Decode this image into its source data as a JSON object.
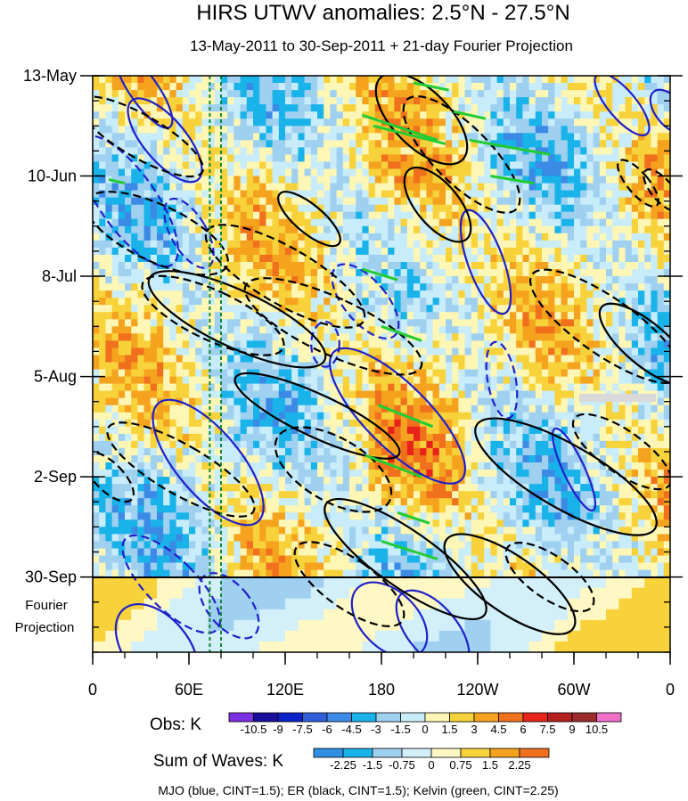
{
  "chart_data": {
    "type": "heatmap",
    "title": "HIRS UTWV anomalies: 2.5°N - 27.5°N",
    "subtitle": "13-May-2011 to 30-Sep-2011 + 21-day Fourier Projection",
    "y_axis": {
      "labels": [
        "13-May",
        "10-Jun",
        "8-Jul",
        "5-Aug",
        "2-Sep",
        "30-Sep"
      ],
      "day_offsets": [
        0,
        28,
        56,
        84,
        112,
        140
      ],
      "range_days": [
        0,
        161
      ],
      "projection_label": [
        "Fourier",
        "Projection"
      ],
      "projection_start_day": 140
    },
    "x_axis": {
      "labels": [
        "0",
        "60E",
        "120E",
        "180",
        "120W",
        "60W",
        "0"
      ],
      "longitudes": [
        0,
        60,
        120,
        180,
        240,
        300,
        360
      ],
      "range": [
        0,
        360
      ]
    },
    "obs_colorbar": {
      "label": "Obs: K",
      "levels": [
        "-10.5",
        "-9",
        "-7.5",
        "-6",
        "-4.5",
        "-3",
        "-1.5",
        "0",
        "1.5",
        "3",
        "4.5",
        "6",
        "7.5",
        "9",
        "10.5"
      ],
      "colors": [
        "#7b2fe0",
        "#1a0f9c",
        "#0b22c8",
        "#2f5fd8",
        "#3a8ae6",
        "#19b3ea",
        "#9fd0f0",
        "#c8ecfa",
        "#fdf6b5",
        "#f7d23a",
        "#f5a31f",
        "#f0701e",
        "#e8231b",
        "#b3201e",
        "#9b2b2b",
        "#f06fc8"
      ]
    },
    "waves_colorbar": {
      "label": "Sum of Waves: K",
      "levels": [
        "-2.25",
        "-1.5",
        "-0.75",
        "0",
        "0.75",
        "1.5",
        "2.25"
      ],
      "colors": [
        "#2f8fe0",
        "#19b3ea",
        "#9fd0f0",
        "#d2effa",
        "#fff8c4",
        "#f7d23a",
        "#f5a31f",
        "#f0701e"
      ]
    },
    "legend_note": "MJO (blue, CINT=1.5); ER (black, CINT=1.5); Kelvin (green, CINT=2.25)",
    "series": [
      {
        "name": "MJO",
        "color": "#2020c8",
        "contour_interval": 1.5
      },
      {
        "name": "ER",
        "color": "#000000",
        "contour_interval": 1.5
      },
      {
        "name": "Kelvin",
        "color": "#22cc33",
        "contour_interval": 2.25
      }
    ],
    "reference_longitudes": [
      73,
      80
    ]
  }
}
